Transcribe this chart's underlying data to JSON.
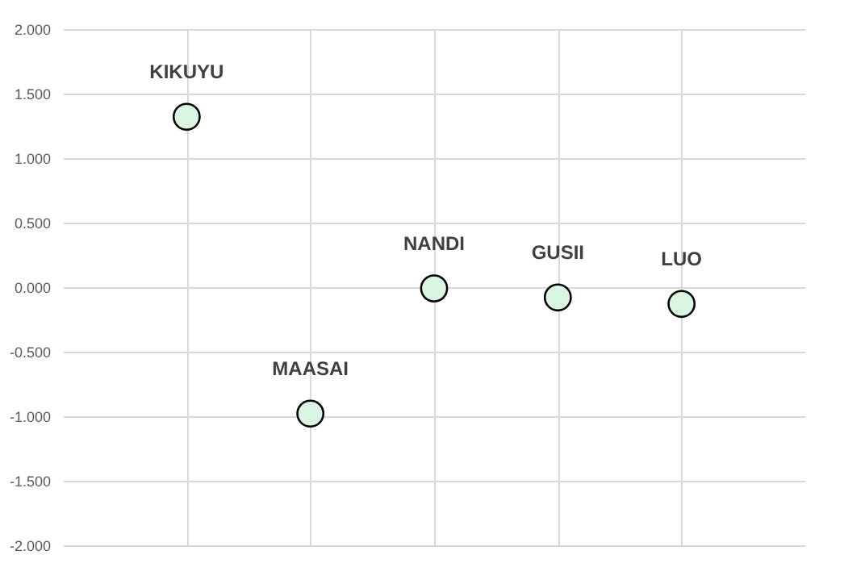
{
  "chart_data": {
    "type": "scatter",
    "categories": [
      "KIKUYU",
      "MAASAI",
      "NANDI",
      "GUSII",
      "LUO"
    ],
    "series": [
      {
        "color": "#d9f5e1",
        "values": [
          1.32,
          -0.98,
          -0.01,
          -0.08,
          -0.13
        ]
      }
    ],
    "ylim": [
      -2,
      2
    ],
    "yticks": [
      {
        "value": -2,
        "label": "-2.000"
      },
      {
        "value": -1.5,
        "label": "-1.500"
      },
      {
        "value": -1,
        "label": "-1.000"
      },
      {
        "value": -0.5,
        "label": "-0.500"
      },
      {
        "value": 0,
        "label": "0.000"
      },
      {
        "value": 0.5,
        "label": "0.500"
      },
      {
        "value": 1,
        "label": "1.000"
      },
      {
        "value": 1.5,
        "label": "1.500"
      },
      {
        "value": 2,
        "label": "2.000"
      }
    ],
    "grid": true,
    "marker": "circle",
    "tick_labels": "y",
    "legend": false
  }
}
